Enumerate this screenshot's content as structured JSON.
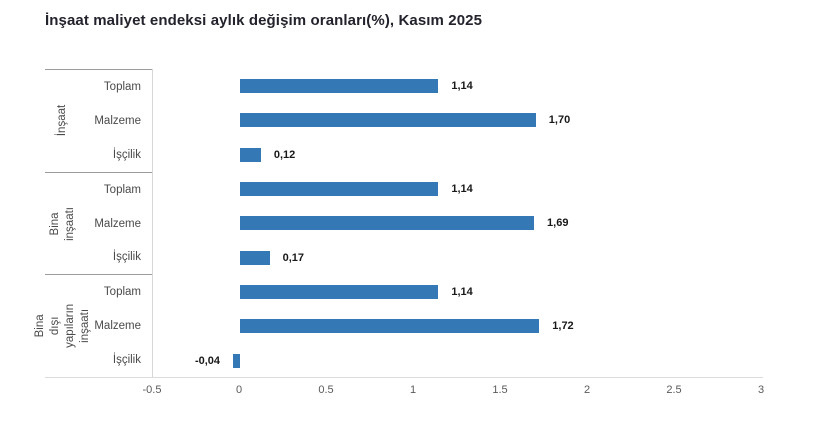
{
  "title": "İnşaat maliyet endeksi aylık değişim oranları(%), Kasım 2025",
  "chart_data": {
    "type": "bar",
    "orientation": "horizontal",
    "title": "İnşaat maliyet endeksi aylık değişim oranları(%), Kasım 2025",
    "xlabel": "",
    "ylabel": "",
    "xlim": [
      -0.5,
      3
    ],
    "x_ticks": [
      "-0.5",
      "0",
      "0.5",
      "1",
      "1.5",
      "2",
      "2.5",
      "3"
    ],
    "grid": false,
    "legend": false,
    "bar_color": "#3478b6",
    "groups": [
      {
        "label": "İnşaat",
        "items": [
          {
            "label": "Toplam",
            "value": 1.14,
            "value_label": "1,14"
          },
          {
            "label": "Malzeme",
            "value": 1.7,
            "value_label": "1,70"
          },
          {
            "label": "İşçilik",
            "value": 0.12,
            "value_label": "0,12"
          }
        ]
      },
      {
        "label": "Bina inşaatı",
        "items": [
          {
            "label": "Toplam",
            "value": 1.14,
            "value_label": "1,14"
          },
          {
            "label": "Malzeme",
            "value": 1.69,
            "value_label": "1,69"
          },
          {
            "label": "İşçilik",
            "value": 0.17,
            "value_label": "0,17"
          }
        ]
      },
      {
        "label": "Bina dışı\nyapıların inşaatı",
        "items": [
          {
            "label": "Toplam",
            "value": 1.14,
            "value_label": "1,14"
          },
          {
            "label": "Malzeme",
            "value": 1.72,
            "value_label": "1,72"
          },
          {
            "label": "İşçilik",
            "value": -0.04,
            "value_label": "-0,04"
          }
        ]
      }
    ]
  }
}
